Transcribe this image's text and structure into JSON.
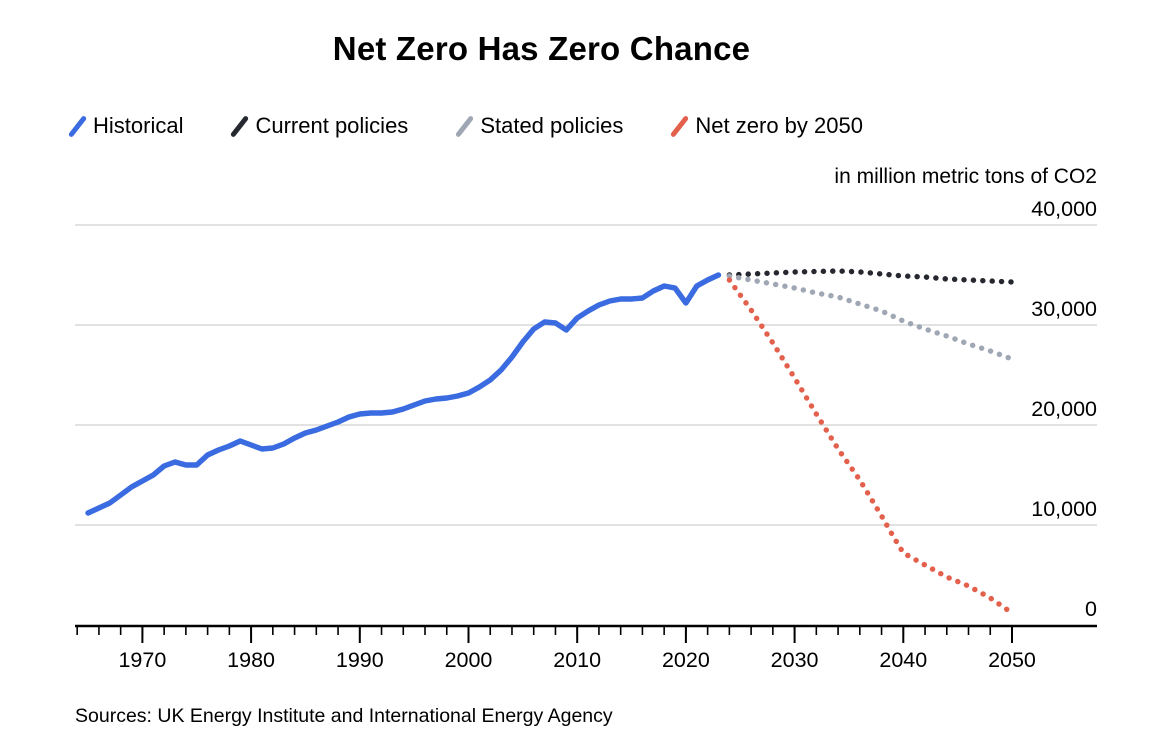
{
  "title": "Net Zero Has Zero Chance",
  "unit_label": "in million metric tons of CO2",
  "source": "Sources: UK Energy Institute and International Energy Agency",
  "colors": {
    "historical": "#3A6BE0",
    "current_policies": "#26282F",
    "stated_policies": "#A0A7B4",
    "net_zero": "#E3604C",
    "grid": "#D8D8D8",
    "axis": "#000000",
    "text": "#000000"
  },
  "legend": [
    {
      "label": "Historical"
    },
    {
      "label": "Current policies"
    },
    {
      "label": "Stated policies"
    },
    {
      "label": "Net zero by 2050"
    }
  ],
  "chart_data": {
    "type": "line",
    "title": "Net Zero Has Zero Chance",
    "ylabel": "in million metric tons of CO2",
    "xlabel": "",
    "grid": "horizontal",
    "legend_position": "top",
    "x_axis": {
      "range": [
        1963.8,
        2057.8
      ],
      "decade_years": [
        1970,
        1980,
        1990,
        2000,
        2010,
        2020,
        2030,
        2040,
        2050
      ],
      "minor_tick_step": 2,
      "minor_tick_start": 1964,
      "minor_tick_end": 2050
    },
    "y_axis": {
      "range": [
        0,
        42500
      ],
      "ticks": [
        0,
        10000,
        20000,
        30000,
        40000
      ],
      "tick_labels": [
        "0",
        "10,000",
        "20,000",
        "30,000",
        "40,000"
      ]
    },
    "series": [
      {
        "name": "Historical",
        "style": "solid",
        "color_key": "historical",
        "points": [
          [
            1965,
            11200
          ],
          [
            1966,
            11700
          ],
          [
            1967,
            12200
          ],
          [
            1968,
            13000
          ],
          [
            1969,
            13800
          ],
          [
            1970,
            14400
          ],
          [
            1971,
            15000
          ],
          [
            1972,
            15900
          ],
          [
            1973,
            16300
          ],
          [
            1974,
            16000
          ],
          [
            1975,
            16000
          ],
          [
            1976,
            17000
          ],
          [
            1977,
            17500
          ],
          [
            1978,
            17900
          ],
          [
            1979,
            18400
          ],
          [
            1980,
            18000
          ],
          [
            1981,
            17600
          ],
          [
            1982,
            17700
          ],
          [
            1983,
            18100
          ],
          [
            1984,
            18700
          ],
          [
            1985,
            19200
          ],
          [
            1986,
            19500
          ],
          [
            1987,
            19900
          ],
          [
            1988,
            20300
          ],
          [
            1989,
            20800
          ],
          [
            1990,
            21100
          ],
          [
            1991,
            21200
          ],
          [
            1992,
            21200
          ],
          [
            1993,
            21300
          ],
          [
            1994,
            21600
          ],
          [
            1995,
            22000
          ],
          [
            1996,
            22400
          ],
          [
            1997,
            22600
          ],
          [
            1998,
            22700
          ],
          [
            1999,
            22900
          ],
          [
            2000,
            23200
          ],
          [
            2001,
            23800
          ],
          [
            2002,
            24500
          ],
          [
            2003,
            25500
          ],
          [
            2004,
            26800
          ],
          [
            2005,
            28300
          ],
          [
            2006,
            29600
          ],
          [
            2007,
            30300
          ],
          [
            2008,
            30200
          ],
          [
            2009,
            29500
          ],
          [
            2010,
            30700
          ],
          [
            2011,
            31400
          ],
          [
            2012,
            32000
          ],
          [
            2013,
            32400
          ],
          [
            2014,
            32600
          ],
          [
            2015,
            32600
          ],
          [
            2016,
            32700
          ],
          [
            2017,
            33400
          ],
          [
            2018,
            33900
          ],
          [
            2019,
            33700
          ],
          [
            2020,
            32200
          ],
          [
            2021,
            33900
          ],
          [
            2022,
            34500
          ],
          [
            2023,
            35000
          ]
        ]
      },
      {
        "name": "Current policies",
        "style": "dotted",
        "color_key": "current_policies",
        "points": [
          [
            2024,
            35000
          ],
          [
            2026,
            35100
          ],
          [
            2028,
            35200
          ],
          [
            2030,
            35300
          ],
          [
            2032,
            35350
          ],
          [
            2034,
            35400
          ],
          [
            2036,
            35300
          ],
          [
            2038,
            35100
          ],
          [
            2040,
            34900
          ],
          [
            2042,
            34800
          ],
          [
            2044,
            34600
          ],
          [
            2046,
            34500
          ],
          [
            2048,
            34400
          ],
          [
            2050,
            34300
          ]
        ]
      },
      {
        "name": "Stated policies",
        "style": "dotted",
        "color_key": "stated_policies",
        "points": [
          [
            2024,
            34900
          ],
          [
            2026,
            34500
          ],
          [
            2028,
            34100
          ],
          [
            2030,
            33700
          ],
          [
            2032,
            33200
          ],
          [
            2034,
            32800
          ],
          [
            2036,
            32100
          ],
          [
            2038,
            31400
          ],
          [
            2040,
            30400
          ],
          [
            2042,
            29600
          ],
          [
            2044,
            28900
          ],
          [
            2046,
            28100
          ],
          [
            2048,
            27400
          ],
          [
            2050,
            26600
          ]
        ]
      },
      {
        "name": "Net zero by 2050",
        "style": "dotted",
        "color_key": "net_zero",
        "points": [
          [
            2024,
            34500
          ],
          [
            2026,
            31500
          ],
          [
            2028,
            28200
          ],
          [
            2030,
            24700
          ],
          [
            2032,
            21100
          ],
          [
            2034,
            17600
          ],
          [
            2036,
            14500
          ],
          [
            2038,
            10900
          ],
          [
            2039,
            9000
          ],
          [
            2040,
            7200
          ],
          [
            2042,
            6000
          ],
          [
            2044,
            4800
          ],
          [
            2046,
            3900
          ],
          [
            2048,
            2700
          ],
          [
            2050,
            1200
          ]
        ]
      }
    ]
  }
}
